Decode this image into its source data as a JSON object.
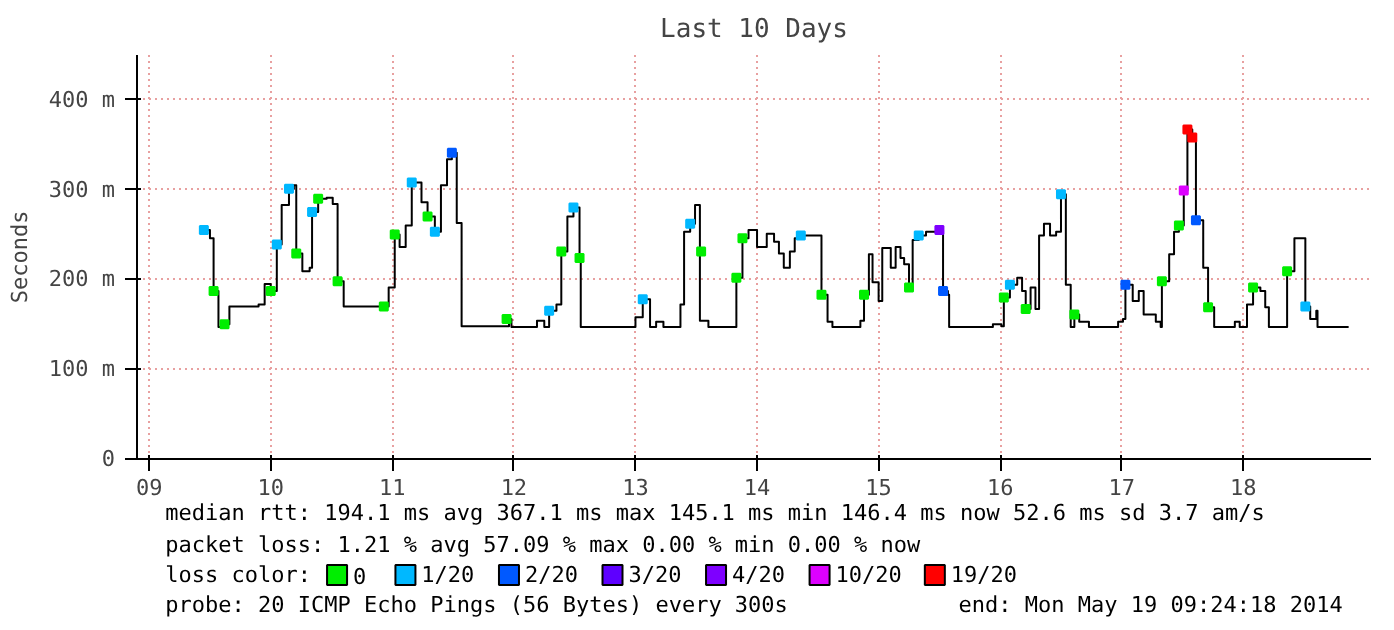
{
  "chart_data": {
    "type": "step",
    "title": "Last 10 Days",
    "ylabel": "Seconds",
    "legend_title": "loss color:",
    "legend": "bottom",
    "grid": true,
    "xlim": [
      9.4,
      19.55
    ],
    "ylim": [
      0,
      450
    ],
    "xticks": [
      {
        "value": 9.5,
        "label": "09"
      },
      {
        "value": 10.5,
        "label": "10"
      },
      {
        "value": 11.5,
        "label": "11"
      },
      {
        "value": 12.5,
        "label": "12"
      },
      {
        "value": 13.5,
        "label": "13"
      },
      {
        "value": 14.5,
        "label": "14"
      },
      {
        "value": 15.5,
        "label": "15"
      },
      {
        "value": 16.5,
        "label": "16"
      },
      {
        "value": 17.5,
        "label": "17"
      },
      {
        "value": 18.5,
        "label": "18"
      }
    ],
    "yticks": [
      0,
      {
        "value": 100,
        "label": "100 m"
      },
      {
        "value": 200,
        "label": "200 m"
      },
      {
        "value": 300,
        "label": "300 m"
      },
      {
        "value": 400,
        "label": "400 m"
      }
    ],
    "series": [
      {
        "color": "#000000",
        "x": [
          9.95,
          10.0,
          10.03,
          10.07,
          10.12,
          10.16,
          10.4,
          10.45,
          10.5,
          10.55,
          10.59,
          10.65,
          10.69,
          10.71,
          10.76,
          10.82,
          10.84,
          10.89,
          10.96,
          11.01,
          11.05,
          11.1,
          11.43,
          11.47,
          11.52,
          11.56,
          11.61,
          11.66,
          11.7,
          11.74,
          11.79,
          11.85,
          11.9,
          11.95,
          11.99,
          12.03,
          12.07,
          12.44,
          12.46,
          12.48,
          12.64,
          12.69,
          12.75,
          12.79,
          12.85,
          12.89,
          12.94,
          12.99,
          13.04,
          13.05,
          13.47,
          13.5,
          13.56,
          13.62,
          13.67,
          13.73,
          13.86,
          13.87,
          13.9,
          13.95,
          13.99,
          14.03,
          14.1,
          14.32,
          14.33,
          14.38,
          14.43,
          14.5,
          14.58,
          14.64,
          14.68,
          14.72,
          14.77,
          14.81,
          14.86,
          15.01,
          15.03,
          15.08,
          15.12,
          15.32,
          15.35,
          15.38,
          15.42,
          15.45,
          15.5,
          15.53,
          15.58,
          15.6,
          15.64,
          15.68,
          15.71,
          15.75,
          15.78,
          15.83,
          15.89,
          16.0,
          16.03,
          16.07,
          16.08,
          16.39,
          16.44,
          16.51,
          16.53,
          16.58,
          16.64,
          16.68,
          16.71,
          16.75,
          16.79,
          16.82,
          16.86,
          16.91,
          16.96,
          17.0,
          17.04,
          17.08,
          17.11,
          17.15,
          17.23,
          17.41,
          17.47,
          17.51,
          17.53,
          17.59,
          17.64,
          17.68,
          17.78,
          17.82,
          17.83,
          17.89,
          17.93,
          17.97,
          18.01,
          18.04,
          18.08,
          18.11,
          18.17,
          18.21,
          18.26,
          18.39,
          18.43,
          18.47,
          18.53,
          18.58,
          18.64,
          18.68,
          18.71,
          18.83,
          18.86,
          18.92,
          18.97,
          19.01,
          19.05,
          19.1,
          19.11,
          19.36
        ],
        "values": [
          255,
          246,
          187,
          147,
          150,
          170,
          172,
          195,
          187,
          239,
          283,
          301,
          305,
          229,
          209,
          213,
          275,
          290,
          291,
          284,
          198,
          170,
          170,
          191,
          250,
          236,
          260,
          308,
          308,
          286,
          270,
          253,
          305,
          334,
          341,
          263,
          148,
          148,
          156,
          147,
          147,
          154,
          147,
          165,
          172,
          231,
          270,
          280,
          224,
          147,
          147,
          158,
          178,
          147,
          153,
          147,
          147,
          172,
          253,
          262,
          283,
          154,
          147,
          147,
          202,
          246,
          255,
          236,
          251,
          242,
          229,
          213,
          231,
          246,
          249,
          249,
          183,
          153,
          147,
          147,
          154,
          183,
          228,
          197,
          176,
          235,
          235,
          213,
          236,
          224,
          217,
          191,
          244,
          249,
          253,
          255,
          187,
          183,
          147,
          147,
          150,
          148,
          180,
          194,
          202,
          187,
          167,
          191,
          167,
          249,
          262,
          249,
          253,
          295,
          194,
          147,
          161,
          153,
          147,
          147,
          153,
          156,
          194,
          176,
          187,
          161,
          153,
          147,
          198,
          228,
          253,
          260,
          299,
          367,
          358,
          266,
          213,
          169,
          147,
          147,
          153,
          147,
          172,
          191,
          187,
          169,
          147,
          147,
          209,
          246,
          246,
          170,
          156,
          165,
          147,
          147
        ]
      },
      {
        "type": "scatter",
        "marker": "square",
        "name": "0",
        "color": "#00ee00",
        "x": [
          10.03,
          10.12,
          10.5,
          10.71,
          10.89,
          11.05,
          11.43,
          11.52,
          11.79,
          12.44,
          12.89,
          13.04,
          14.04,
          14.33,
          14.38,
          15.03,
          15.38,
          15.75,
          16.53,
          16.71,
          17.11,
          17.83,
          17.97,
          18.21,
          18.58,
          18.86
        ],
        "values": [
          187,
          150,
          187,
          229,
          290,
          198,
          170,
          250,
          270,
          156,
          231,
          224,
          231,
          202,
          246,
          183,
          183,
          191,
          180,
          167,
          161,
          198,
          260,
          169,
          191,
          209
        ]
      },
      {
        "type": "scatter",
        "marker": "square",
        "name": "1/20",
        "color": "#00b8ff",
        "x": [
          9.95,
          10.55,
          10.65,
          10.84,
          11.66,
          11.85,
          12.79,
          12.99,
          13.56,
          13.95,
          14.86,
          15.83,
          16.58,
          17.0,
          19.01
        ],
        "values": [
          255,
          239,
          301,
          275,
          308,
          253,
          165,
          280,
          178,
          262,
          249,
          249,
          194,
          295,
          170
        ]
      },
      {
        "type": "scatter",
        "marker": "square",
        "name": "2/20",
        "color": "#0059ff",
        "x": [
          11.99,
          16.03,
          17.53,
          18.11
        ],
        "values": [
          341,
          187,
          194,
          266
        ]
      },
      {
        "type": "scatter",
        "marker": "square",
        "name": "3/20",
        "color": "#5e00ff"
      },
      {
        "type": "scatter",
        "marker": "square",
        "name": "4/20",
        "color": "#7e00ff",
        "x": [
          16.0
        ],
        "values": [
          255
        ]
      },
      {
        "type": "scatter",
        "marker": "square",
        "name": "10/20",
        "color": "#dd00ff",
        "x": [
          18.01
        ],
        "values": [
          299
        ]
      },
      {
        "type": "scatter",
        "marker": "square",
        "name": "19/20",
        "color": "#ff0000",
        "x": [
          18.04,
          18.08
        ],
        "values": [
          367,
          358
        ]
      }
    ],
    "annotations": [
      "median rtt:  194.1 ms avg  367.1 ms max  145.1 ms min  146.4 ms now  52.6 ms sd  3.7  am/s",
      "packet loss: 1.21 % avg  57.09 % max  0.00 % min  0.00 % now",
      "probe:        20 ICMP Echo Pings (56 Bytes) every 300s",
      "end: Mon May 19 09:24:18 2014"
    ]
  }
}
